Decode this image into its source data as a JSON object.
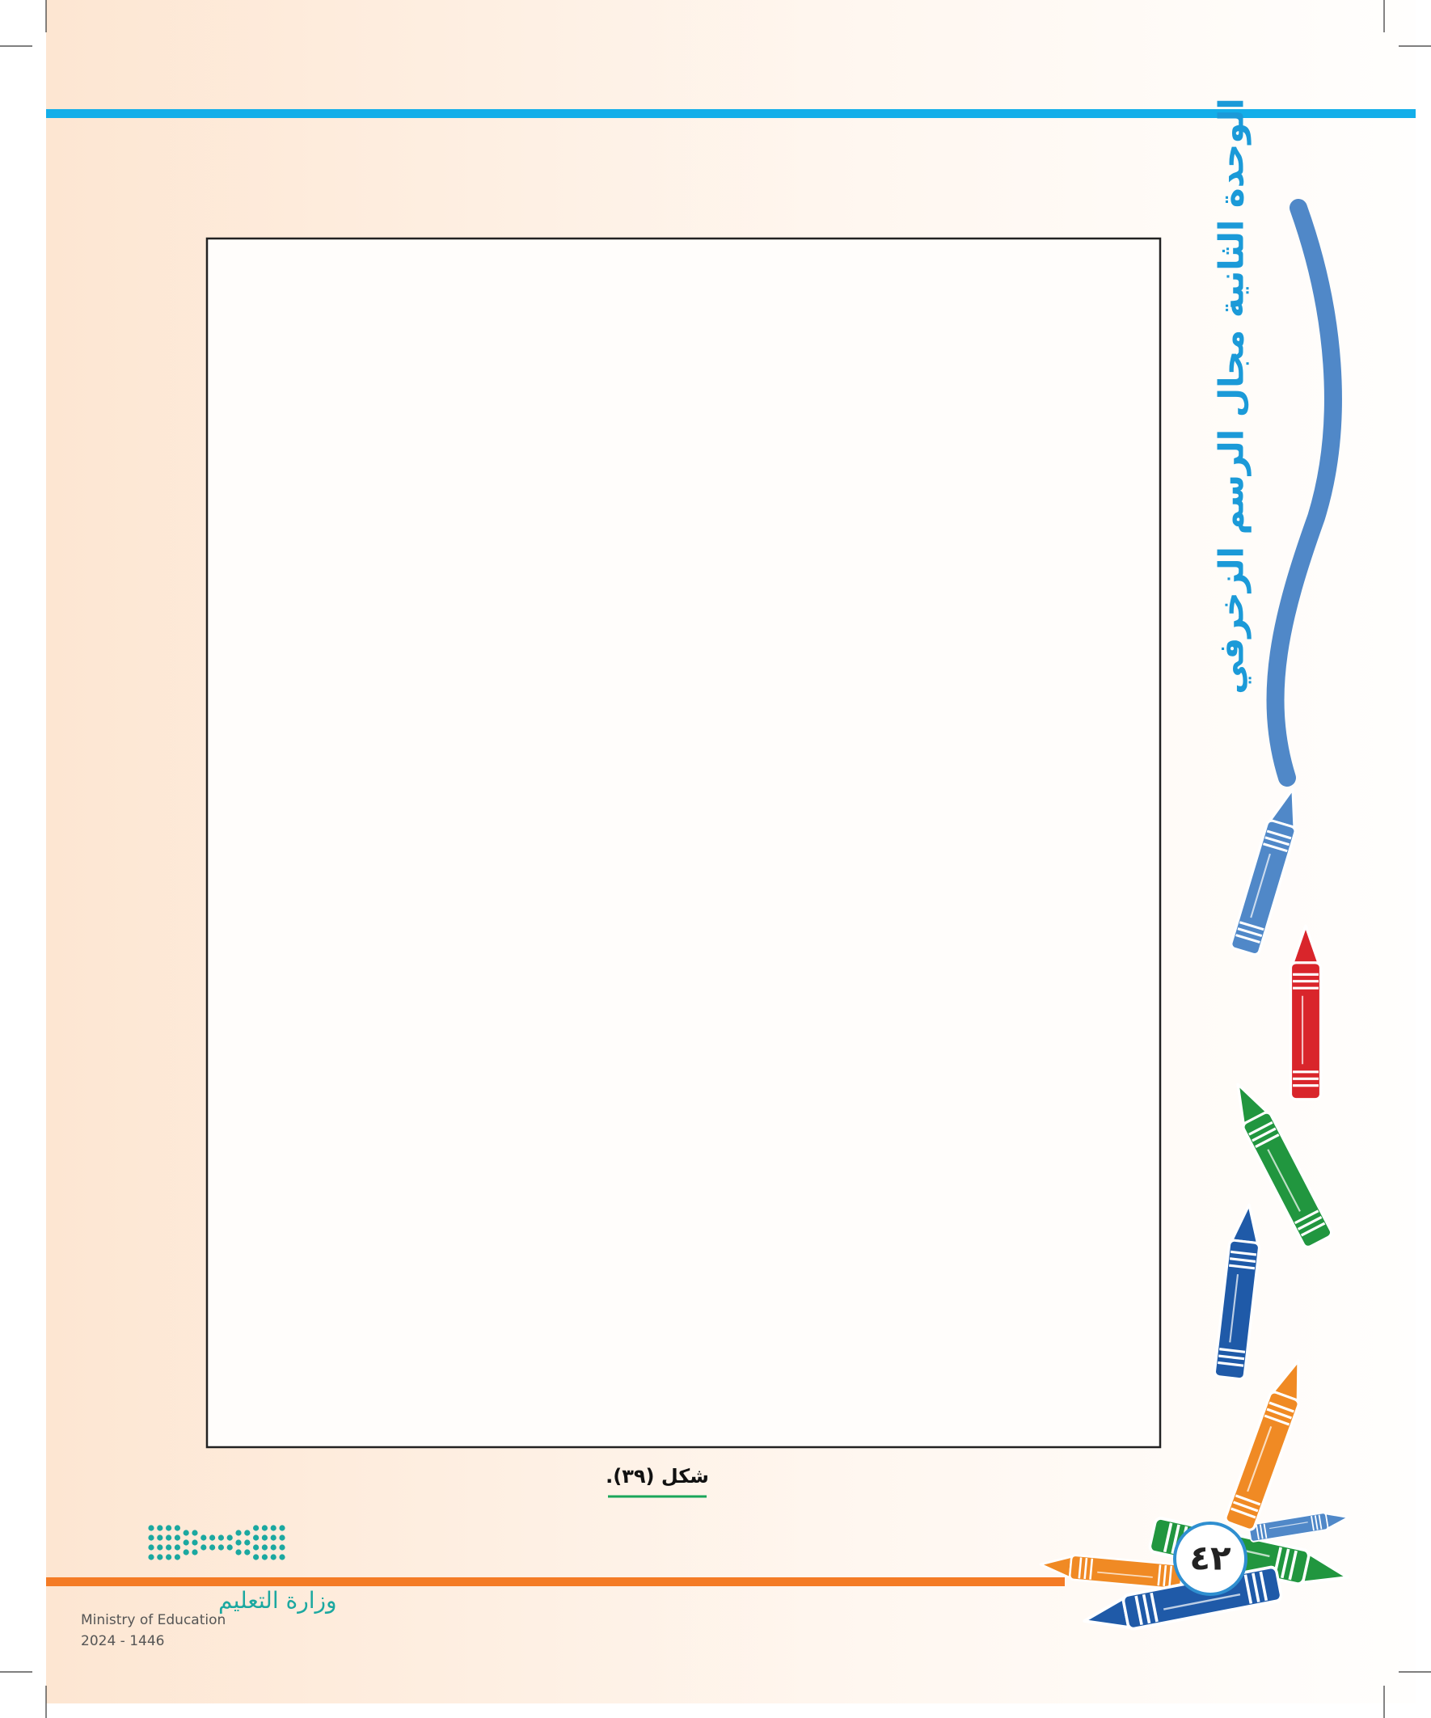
{
  "header": {
    "unit_title": "الوحدة الثانية مجال الرسم الزخرفي"
  },
  "figure": {
    "caption": "شكل (٣٩)."
  },
  "footer": {
    "page_number": "٤٢",
    "ministry_ar": "وزارة التعليم",
    "ministry_en": "Ministry of Education",
    "year": "2024 - 1446"
  }
}
